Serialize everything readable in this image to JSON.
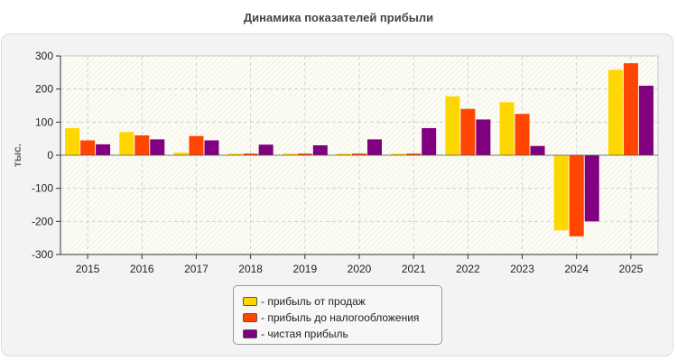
{
  "chart_data": {
    "type": "bar",
    "title": "Динамика показателей прибыли",
    "ylabel": "тыс.",
    "xlabel": "",
    "categories": [
      "2015",
      "2016",
      "2017",
      "2018",
      "2019",
      "2020",
      "2021",
      "2022",
      "2023",
      "2024",
      "2025"
    ],
    "ylim": [
      -300,
      300
    ],
    "yticks": [
      -300,
      -200,
      -100,
      0,
      100,
      200,
      300
    ],
    "series": [
      {
        "name": "- прибыль от продаж",
        "color": "#ffd700",
        "values": [
          82,
          70,
          8,
          5,
          5,
          5,
          5,
          178,
          160,
          -227,
          258
        ]
      },
      {
        "name": "- прибыль до налогообложения",
        "color": "#ff4500",
        "values": [
          45,
          60,
          58,
          5,
          5,
          5,
          5,
          140,
          125,
          -245,
          278
        ]
      },
      {
        "name": "- чистая прибыль",
        "color": "#800080",
        "values": [
          33,
          48,
          45,
          32,
          30,
          48,
          82,
          108,
          28,
          -200,
          210
        ]
      }
    ],
    "grid": true,
    "legend_position": "bottom"
  }
}
